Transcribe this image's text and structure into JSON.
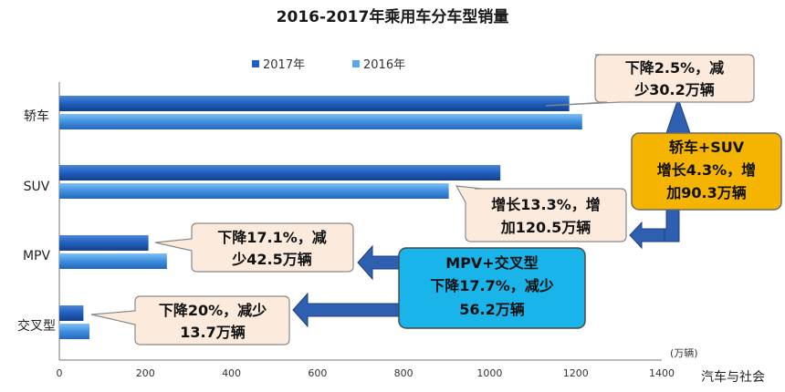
{
  "chart_data": {
    "type": "bar",
    "orientation": "horizontal",
    "title": "2016-2017年乘用车分车型销量",
    "categories": [
      "轿车",
      "SUV",
      "MPV",
      "交叉型"
    ],
    "series": [
      {
        "name": "2017年",
        "color": "#1f5fbf",
        "values": [
          1185,
          1025,
          207,
          56
        ]
      },
      {
        "name": "2016年",
        "color": "#3f8fe0",
        "values": [
          1215,
          905,
          250,
          70
        ]
      }
    ],
    "xlim": [
      0,
      1400
    ],
    "xticks": [
      "0",
      "200",
      "400",
      "600",
      "800",
      "1000",
      "1200",
      "1400"
    ],
    "unit": "(万辆)",
    "legend_position": "top",
    "grid": false
  },
  "annotations": {
    "sedan": [
      "下降2.5%，减",
      "少30.2万辆"
    ],
    "suv": [
      "增长13.3%，增",
      "加120.5万辆"
    ],
    "mpv": [
      "下降17.1%，减",
      "少42.5万辆"
    ],
    "crossover": [
      "下降20%，减少",
      "13.7万辆"
    ],
    "sedan_suv_box": [
      "轿车+SUV",
      "增长4.3%，增",
      "加90.3万辆"
    ],
    "mpv_cross_box": [
      "MPV+交叉型",
      "下降17.7%，减少",
      "56.2万辆"
    ]
  },
  "colors": {
    "bubble_fill": "#fcebdc",
    "orange_box": "#f5b400",
    "cyan_box": "#18b4ea",
    "arrow_blue": "#2f5fb0"
  },
  "watermark": "汽车与社会"
}
